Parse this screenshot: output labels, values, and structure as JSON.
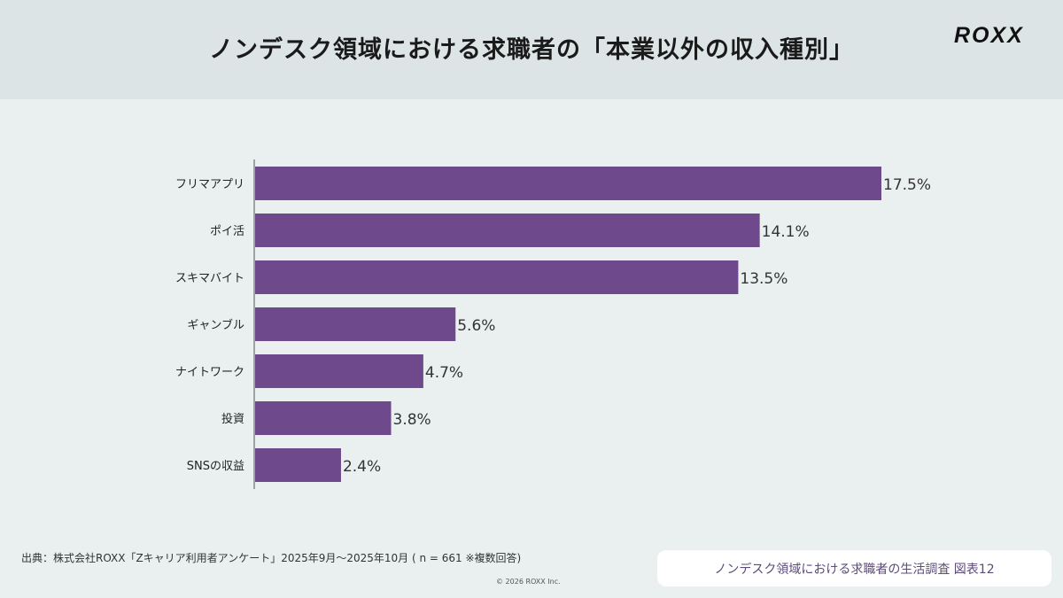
{
  "header": {
    "title": "ノンデスク領域における求職者の「本業以外の収入種別」",
    "logo": "ROXX"
  },
  "chart_data": {
    "type": "bar",
    "orientation": "horizontal",
    "categories": [
      "フリマアプリ",
      "ポイ活",
      "スキマバイト",
      "ギャンブル",
      "ナイトワーク",
      "投資",
      "SNSの収益"
    ],
    "values": [
      17.5,
      14.1,
      13.5,
      5.6,
      4.7,
      3.8,
      2.4
    ],
    "value_labels": [
      "17.5%",
      "14.1%",
      "13.5%",
      "5.6%",
      "4.7%",
      "3.8%",
      "2.4%"
    ],
    "unit": "%",
    "xlim": [
      0,
      20
    ],
    "grid": false,
    "bar_color": "#6e4a8c"
  },
  "footer": {
    "source": "出典：株式会社ROXX「Zキャリア利用者アンケート」2025年9月～2025年10月 ( n = 661 ※複数回答)",
    "copyright": "© 2026 ROXX Inc.",
    "caption": "ノンデスク領域における求職者の生活調査 図表12"
  },
  "colors": {
    "header_bg": "#dce4e6",
    "page_bg": "#e9f0ef",
    "caption_text": "#5c4a78"
  }
}
